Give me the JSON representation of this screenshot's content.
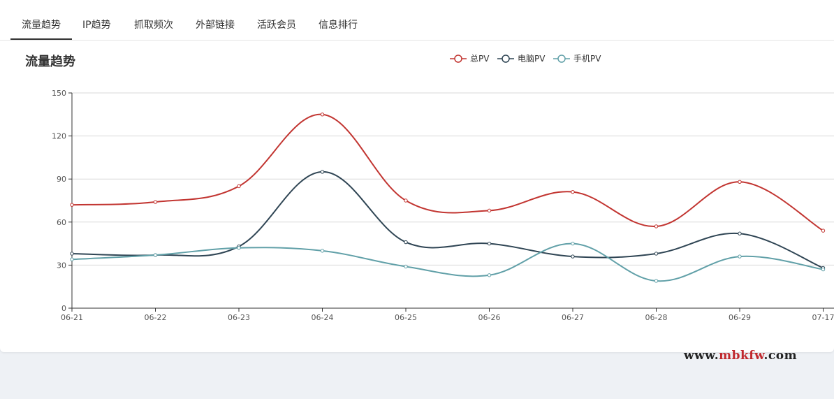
{
  "tabs": [
    {
      "label": "流量趋势",
      "active": true
    },
    {
      "label": "IP趋势",
      "active": false
    },
    {
      "label": "抓取频次",
      "active": false
    },
    {
      "label": "外部链接",
      "active": false
    },
    {
      "label": "活跃会员",
      "active": false
    },
    {
      "label": "信息排行",
      "active": false
    }
  ],
  "page_title": "流量趋势",
  "watermark": {
    "prefix": "www.",
    "accent": "mbkfw",
    "suffix": ".com"
  },
  "chart_data": {
    "type": "line",
    "smooth": true,
    "categories": [
      "06-21",
      "06-22",
      "06-23",
      "06-24",
      "06-25",
      "06-26",
      "06-27",
      "06-28",
      "06-29",
      "07-17"
    ],
    "series": [
      {
        "name": "总PV",
        "color": "#c23531",
        "values": [
          72,
          74,
          85,
          135,
          75,
          68,
          81,
          57,
          88,
          54
        ]
      },
      {
        "name": "电脑PV",
        "color": "#2f4554",
        "values": [
          38,
          37,
          43,
          95,
          46,
          45,
          36,
          38,
          52,
          28
        ]
      },
      {
        "name": "手机PV",
        "color": "#61a0a8",
        "values": [
          34,
          37,
          42,
          40,
          29,
          23,
          45,
          19,
          36,
          27
        ]
      }
    ],
    "ylim": [
      0,
      150
    ],
    "yticks": [
      0,
      30,
      60,
      90,
      120,
      150
    ],
    "grid": true,
    "legend_position": "top-center"
  }
}
